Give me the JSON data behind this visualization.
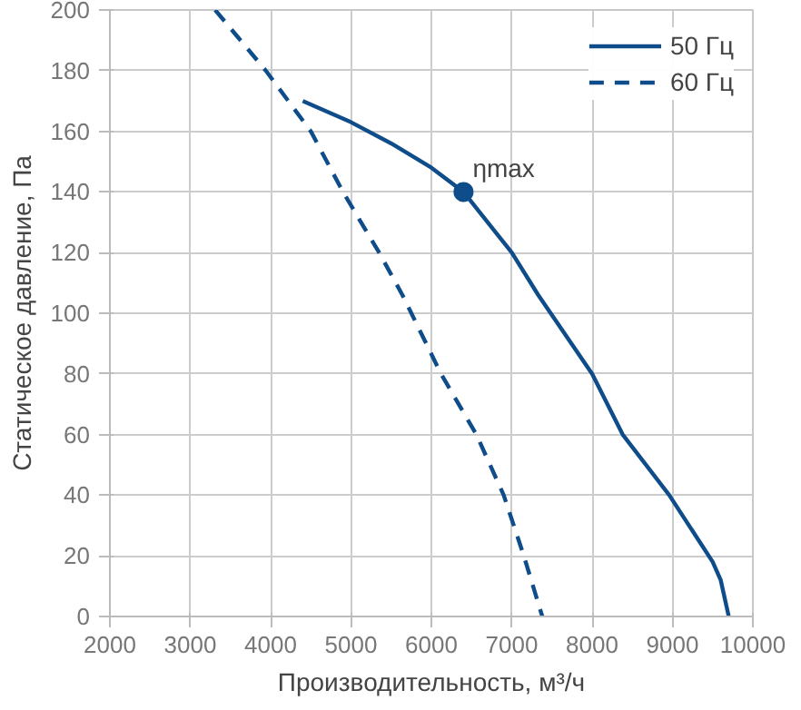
{
  "chart_data": {
    "type": "line",
    "xlabel": "Производительность, м³/ч",
    "ylabel": "Статическое давление, Па",
    "xlim": [
      2000,
      10000
    ],
    "xticks": [
      2000,
      3000,
      4000,
      5000,
      6000,
      7000,
      8000,
      9000,
      10000
    ],
    "ylim": [
      0,
      200
    ],
    "yticks": [
      0,
      20,
      40,
      60,
      80,
      100,
      120,
      140,
      160,
      180,
      200
    ],
    "grid": true,
    "legend": "top right",
    "series": [
      {
        "name": "50 Гц",
        "color": "#0f4c8a",
        "line_style": "solid",
        "x": [
          4400,
          5000,
          5500,
          6000,
          6400,
          7000,
          7330,
          8000,
          8380,
          8960,
          9500,
          9600,
          9700
        ],
        "values": [
          170,
          163,
          156,
          148,
          140,
          120,
          106,
          80,
          60,
          40,
          18,
          12,
          0
        ]
      },
      {
        "name": "60 Гц",
        "color": "#0f4c8a",
        "line_style": "dashed",
        "x": [
          3310,
          3940,
          4500,
          4900,
          5350,
          5640,
          6120,
          6560,
          6900,
          7150,
          7380
        ],
        "values": [
          200,
          180,
          160,
          140,
          120,
          106,
          80,
          60,
          40,
          20,
          0
        ]
      },
      {
        "type": "scatter",
        "marker": "circle",
        "color": "#0f4c8a",
        "x": [
          6400
        ],
        "values": [
          140
        ]
      }
    ],
    "annotations": [
      {
        "text": "ηmax",
        "x": 6400,
        "y": 140
      }
    ]
  }
}
